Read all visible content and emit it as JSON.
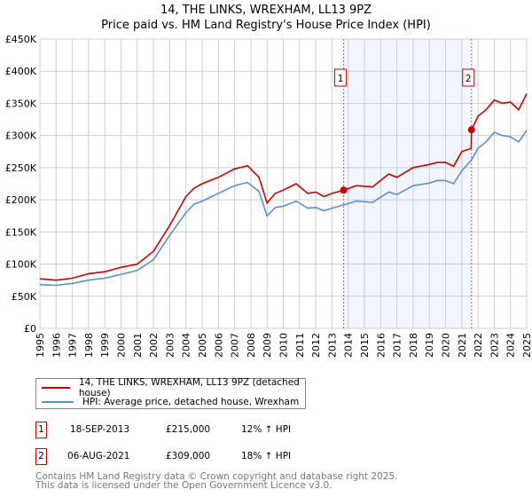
{
  "chart_data": {
    "type": "line",
    "title": "14, THE LINKS, WREXHAM, LL13 9PZ",
    "subtitle": "Price paid vs. HM Land Registry's House Price Index (HPI)",
    "xlim": [
      1995,
      2025
    ],
    "ylim": [
      0,
      450000
    ],
    "grid": true,
    "y_ticks": [
      {
        "v": 0,
        "label": "£0"
      },
      {
        "v": 50000,
        "label": "£50K"
      },
      {
        "v": 100000,
        "label": "£100K"
      },
      {
        "v": 150000,
        "label": "£150K"
      },
      {
        "v": 200000,
        "label": "£200K"
      },
      {
        "v": 250000,
        "label": "£250K"
      },
      {
        "v": 300000,
        "label": "£300K"
      },
      {
        "v": 350000,
        "label": "£350K"
      },
      {
        "v": 400000,
        "label": "£400K"
      },
      {
        "v": 450000,
        "label": "£450K"
      }
    ],
    "x_ticks": [
      "1995",
      "1996",
      "1997",
      "1998",
      "1999",
      "2000",
      "2001",
      "2002",
      "2003",
      "2004",
      "2005",
      "2006",
      "2007",
      "2008",
      "2009",
      "2010",
      "2011",
      "2012",
      "2013",
      "2014",
      "2015",
      "2016",
      "2017",
      "2018",
      "2019",
      "2020",
      "2021",
      "2022",
      "2023",
      "2024",
      "2025"
    ],
    "shaded_range": [
      2013.72,
      2021.6
    ],
    "series": [
      {
        "name": "14, THE LINKS, WREXHAM, LL13 9PZ (detached house)",
        "color": "#cc0000",
        "x": [
          1995,
          1996,
          1997,
          1998,
          1999,
          2000,
          2001,
          2002,
          2003,
          2004,
          2004.5,
          2005,
          2006,
          2007,
          2007.8,
          2008.5,
          2009,
          2009.5,
          2010,
          2010.8,
          2011.5,
          2012,
          2012.5,
          2013,
          2013.72,
          2014.5,
          2015.5,
          2016.5,
          2017,
          2018,
          2019,
          2019.5,
          2020,
          2020.5,
          2021,
          2021.58,
          2021.6,
          2022,
          2022.5,
          2023,
          2023.5,
          2024,
          2024.5,
          2025
        ],
        "y": [
          77000,
          75000,
          78000,
          85000,
          88000,
          95000,
          100000,
          120000,
          160000,
          205000,
          218000,
          225000,
          235000,
          248000,
          253000,
          235000,
          195000,
          210000,
          215000,
          225000,
          210000,
          212000,
          205000,
          210000,
          215000,
          222000,
          220000,
          240000,
          235000,
          250000,
          255000,
          258000,
          258000,
          252000,
          275000,
          280000,
          309000,
          330000,
          340000,
          355000,
          350000,
          352000,
          340000,
          365000
        ]
      },
      {
        "name": "HPI: Average price, detached house, Wrexham",
        "color": "#5b8fd0",
        "x": [
          1995,
          1996,
          1997,
          1998,
          1999,
          2000,
          2001,
          2002,
          2003,
          2004,
          2004.5,
          2005,
          2006,
          2007,
          2007.8,
          2008.5,
          2009,
          2009.5,
          2010,
          2010.8,
          2011.5,
          2012,
          2012.5,
          2013,
          2013.72,
          2014.5,
          2015.5,
          2016.5,
          2017,
          2018,
          2019,
          2019.5,
          2020,
          2020.5,
          2021,
          2021.6,
          2022,
          2022.5,
          2023,
          2023.5,
          2024,
          2024.5,
          2025
        ],
        "y": [
          68000,
          67000,
          70000,
          75000,
          78000,
          84000,
          90000,
          107000,
          145000,
          180000,
          193000,
          198000,
          210000,
          222000,
          227000,
          213000,
          175000,
          188000,
          190000,
          198000,
          187000,
          188000,
          183000,
          187000,
          192000,
          198000,
          196000,
          212000,
          208000,
          222000,
          226000,
          230000,
          230000,
          225000,
          245000,
          262000,
          280000,
          290000,
          305000,
          300000,
          298000,
          290000,
          308000
        ]
      }
    ],
    "sales": [
      {
        "id": "1",
        "x": 2013.72,
        "y": 215000
      },
      {
        "id": "2",
        "x": 2021.6,
        "y": 309000
      }
    ]
  },
  "legend": {
    "items": [
      {
        "label": "14, THE LINKS, WREXHAM, LL13 9PZ (detached house)",
        "color": "#cc0000"
      },
      {
        "label": "HPI: Average price, detached house, Wrexham",
        "color": "#5b8fd0"
      }
    ]
  },
  "transactions": [
    {
      "id": "1",
      "date": "18-SEP-2013",
      "price": "£215,000",
      "hpi": "12% ↑ HPI"
    },
    {
      "id": "2",
      "date": "06-AUG-2021",
      "price": "£309,000",
      "hpi": "18% ↑ HPI"
    }
  ],
  "footer": {
    "line1": "Contains HM Land Registry data © Crown copyright and database right 2025.",
    "line2": "This data is licensed under the Open Government Licence v3.0."
  }
}
